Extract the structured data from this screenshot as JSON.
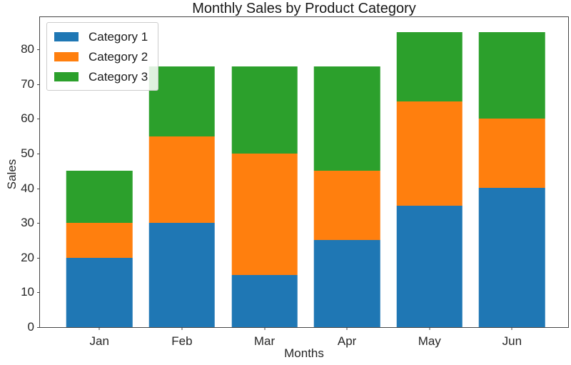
{
  "chart_data": {
    "type": "bar",
    "stacked": true,
    "title": "Monthly Sales by Product Category",
    "xlabel": "Months",
    "ylabel": "Sales",
    "categories": [
      "Jan",
      "Feb",
      "Mar",
      "Apr",
      "May",
      "Jun"
    ],
    "series": [
      {
        "name": "Category 1",
        "color": "#1f77b4",
        "values": [
          20,
          30,
          15,
          25,
          35,
          40
        ]
      },
      {
        "name": "Category 2",
        "color": "#ff7f0e",
        "values": [
          10,
          25,
          35,
          20,
          30,
          20
        ]
      },
      {
        "name": "Category 3",
        "color": "#2ca02c",
        "values": [
          15,
          20,
          25,
          30,
          20,
          25
        ]
      }
    ],
    "yticks": [
      0,
      10,
      20,
      30,
      40,
      50,
      60,
      70,
      80
    ],
    "ylim": [
      0,
      89.25
    ],
    "grid": false,
    "legend_position": "upper-left",
    "background_color": "#ffffff"
  }
}
